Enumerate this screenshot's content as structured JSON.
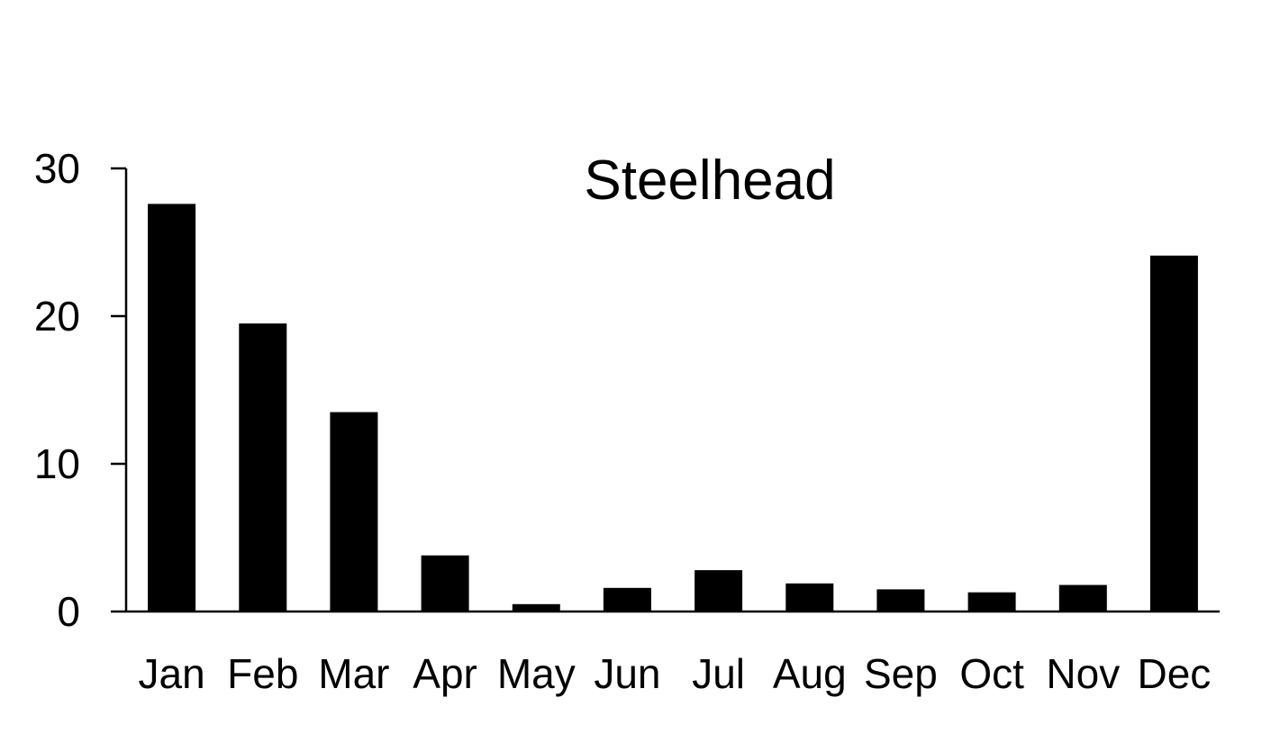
{
  "chart_data": {
    "type": "bar",
    "title": "Steelhead",
    "xlabel": "",
    "ylabel": "",
    "categories": [
      "Jan",
      "Feb",
      "Mar",
      "Apr",
      "May",
      "Jun",
      "Jul",
      "Aug",
      "Sep",
      "Oct",
      "Nov",
      "Dec"
    ],
    "values": [
      27.6,
      19.5,
      13.5,
      3.8,
      0.5,
      1.6,
      2.8,
      1.9,
      1.5,
      1.3,
      1.8,
      24.1
    ],
    "ylim": [
      0,
      30
    ],
    "yticks": [
      0,
      10,
      20,
      30
    ],
    "grid": false,
    "legend": "none",
    "bar_color": "#000000"
  }
}
